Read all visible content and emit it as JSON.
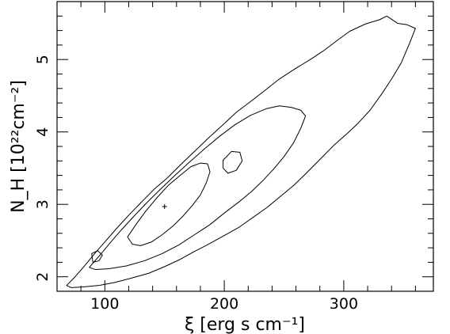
{
  "chart_data": {
    "type": "contour",
    "xlabel": "ξ [erg s cm⁻¹]",
    "ylabel": "N_H [10²²cm⁻²]",
    "xlim": [
      60,
      375
    ],
    "ylim": [
      1.8,
      5.8
    ],
    "xticks": [
      100,
      200,
      300
    ],
    "yticks": [
      2,
      3,
      4,
      5
    ],
    "grid": false,
    "best_fit": {
      "x": 150,
      "y": 2.97
    },
    "contours": [
      {
        "name": "",
        "points": [
          [
            68,
            1.88
          ],
          [
            74,
            1.98
          ],
          [
            83,
            2.15
          ],
          [
            93,
            2.35
          ],
          [
            101,
            2.5
          ],
          [
            110,
            2.67
          ],
          [
            120,
            2.85
          ],
          [
            130,
            3.02
          ],
          [
            142,
            3.22
          ],
          [
            152,
            3.36
          ],
          [
            163,
            3.54
          ],
          [
            175,
            3.73
          ],
          [
            187,
            3.92
          ],
          [
            199,
            4.1
          ],
          [
            210,
            4.27
          ],
          [
            222,
            4.42
          ],
          [
            233,
            4.56
          ],
          [
            246,
            4.73
          ],
          [
            260,
            4.88
          ],
          [
            272,
            5.0
          ],
          [
            283,
            5.12
          ],
          [
            295,
            5.27
          ],
          [
            305,
            5.39
          ],
          [
            318,
            5.49
          ],
          [
            330,
            5.55
          ],
          [
            336,
            5.6
          ],
          [
            345,
            5.5
          ],
          [
            353,
            5.48
          ],
          [
            360,
            5.43
          ],
          [
            355,
            5.22
          ],
          [
            348,
            4.95
          ],
          [
            340,
            4.73
          ],
          [
            332,
            4.53
          ],
          [
            322,
            4.3
          ],
          [
            312,
            4.12
          ],
          [
            303,
            3.98
          ],
          [
            292,
            3.82
          ],
          [
            280,
            3.62
          ],
          [
            268,
            3.42
          ],
          [
            258,
            3.26
          ],
          [
            247,
            3.11
          ],
          [
            236,
            2.96
          ],
          [
            224,
            2.82
          ],
          [
            212,
            2.68
          ],
          [
            200,
            2.57
          ],
          [
            188,
            2.46
          ],
          [
            175,
            2.35
          ],
          [
            163,
            2.24
          ],
          [
            150,
            2.14
          ],
          [
            137,
            2.05
          ],
          [
            122,
            1.98
          ],
          [
            108,
            1.92
          ],
          [
            95,
            1.88
          ],
          [
            82,
            1.86
          ],
          [
            72,
            1.85
          ],
          [
            68,
            1.88
          ]
        ]
      },
      {
        "name": "",
        "points": [
          [
            87,
            2.13
          ],
          [
            96,
            2.3
          ],
          [
            105,
            2.48
          ],
          [
            114,
            2.65
          ],
          [
            124,
            2.83
          ],
          [
            135,
            3.02
          ],
          [
            146,
            3.2
          ],
          [
            158,
            3.39
          ],
          [
            170,
            3.57
          ],
          [
            183,
            3.76
          ],
          [
            196,
            3.94
          ],
          [
            209,
            4.1
          ],
          [
            222,
            4.23
          ],
          [
            235,
            4.32
          ],
          [
            246,
            4.36
          ],
          [
            256,
            4.34
          ],
          [
            264,
            4.3
          ],
          [
            268,
            4.22
          ],
          [
            264,
            4.05
          ],
          [
            258,
            3.85
          ],
          [
            250,
            3.66
          ],
          [
            242,
            3.5
          ],
          [
            233,
            3.34
          ],
          [
            223,
            3.18
          ],
          [
            212,
            3.03
          ],
          [
            200,
            2.88
          ],
          [
            188,
            2.72
          ],
          [
            175,
            2.58
          ],
          [
            162,
            2.44
          ],
          [
            148,
            2.32
          ],
          [
            133,
            2.22
          ],
          [
            118,
            2.15
          ],
          [
            103,
            2.11
          ],
          [
            92,
            2.1
          ],
          [
            87,
            2.13
          ]
        ]
      },
      {
        "name": "",
        "points": [
          [
            119,
            2.55
          ],
          [
            126,
            2.72
          ],
          [
            134,
            2.9
          ],
          [
            143,
            3.08
          ],
          [
            153,
            3.26
          ],
          [
            163,
            3.4
          ],
          [
            172,
            3.52
          ],
          [
            180,
            3.57
          ],
          [
            186,
            3.56
          ],
          [
            188,
            3.45
          ],
          [
            185,
            3.3
          ],
          [
            180,
            3.13
          ],
          [
            173,
            2.98
          ],
          [
            165,
            2.83
          ],
          [
            157,
            2.7
          ],
          [
            148,
            2.58
          ],
          [
            139,
            2.48
          ],
          [
            130,
            2.43
          ],
          [
            123,
            2.45
          ],
          [
            119,
            2.55
          ]
        ]
      },
      {
        "name": "",
        "points": [
          [
            199,
            3.61
          ],
          [
            206,
            3.73
          ],
          [
            213,
            3.72
          ],
          [
            215,
            3.6
          ],
          [
            210,
            3.47
          ],
          [
            203,
            3.43
          ],
          [
            199,
            3.5
          ],
          [
            199,
            3.61
          ]
        ]
      },
      {
        "name": "",
        "points": [
          [
            89,
            2.32
          ],
          [
            94,
            2.36
          ],
          [
            98,
            2.3
          ],
          [
            95,
            2.22
          ],
          [
            90,
            2.2
          ],
          [
            89,
            2.32
          ]
        ]
      }
    ]
  }
}
